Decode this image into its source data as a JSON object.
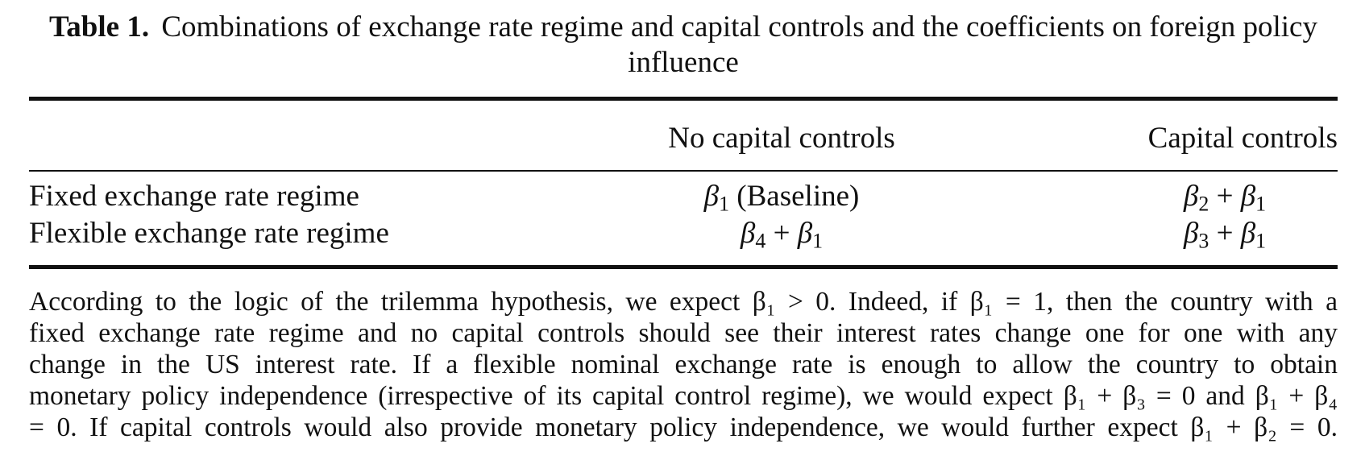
{
  "caption": {
    "label": "Table 1.",
    "text": "Combinations of exchange rate regime and capital controls and the coefficients on foreign policy influence"
  },
  "table": {
    "columns": [
      "",
      "No capital controls",
      "Capital controls"
    ],
    "rows": [
      {
        "label": "Fixed exchange rate regime",
        "no_controls": {
          "beta": "β",
          "sub": "1",
          "rest": " (Baseline)"
        },
        "controls": {
          "b1": "β",
          "s1": "2",
          "op": " + ",
          "b2": "β",
          "s2": "1"
        }
      },
      {
        "label": "Flexible exchange rate regime",
        "no_controls": {
          "b1": "β",
          "s1": "4",
          "op": " + ",
          "b2": "β",
          "s2": "1"
        },
        "controls": {
          "b1": "β",
          "s1": "3",
          "op": " + ",
          "b2": "β",
          "s2": "1"
        }
      }
    ]
  },
  "note": {
    "line1": "According to the logic of the trilemma hypothesis, we expect β₁ > 0. Indeed, if β₁ = 1, then the country with a",
    "line2": "fixed exchange rate regime and no capital controls should see their interest rates change one for one with any",
    "line3": "change in the US interest rate. If a flexible nominal exchange rate is enough to allow the country to obtain",
    "line4": "monetary policy independence (irrespective of its capital control regime), we would expect β₁ + β₃ = 0 and β₁ + β₄",
    "line5": "= 0. If capital controls would also provide monetary policy independence, we would further expect β₁ + β₂ = 0."
  }
}
